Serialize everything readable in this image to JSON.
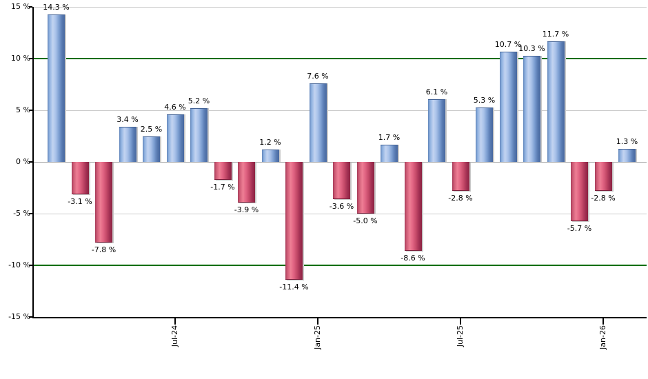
{
  "chart_data": {
    "type": "bar",
    "title": "",
    "values": [
      14.3,
      -3.1,
      -7.8,
      3.4,
      2.5,
      4.6,
      5.2,
      -1.7,
      -3.9,
      1.2,
      -11.4,
      7.6,
      -3.6,
      -5.0,
      1.7,
      -8.6,
      6.1,
      -2.8,
      5.3,
      10.7,
      10.3,
      11.7,
      -5.7,
      -2.8,
      1.3
    ],
    "value_label_suffix": " %",
    "ylim": [
      -15,
      15
    ],
    "y_ticks": [
      {
        "value": 15,
        "label": "15 %"
      },
      {
        "value": 10,
        "label": "10 %"
      },
      {
        "value": 5,
        "label": "5 %"
      },
      {
        "value": 0,
        "label": "0 %"
      },
      {
        "value": -5,
        "label": "-5 %"
      },
      {
        "value": -10,
        "label": "-10 %"
      },
      {
        "value": -15,
        "label": "-15 %"
      }
    ],
    "x_ticks": [
      {
        "index": 5,
        "label": "Jul-24"
      },
      {
        "index": 11,
        "label": "Jan-25"
      },
      {
        "index": 17,
        "label": "Jul-25"
      },
      {
        "index": 23,
        "label": "Jan-26"
      }
    ],
    "gridline_values": [
      15,
      10,
      5,
      0,
      -5
    ],
    "reference_line_values": [
      10,
      -10
    ],
    "legend": null,
    "grid": true,
    "colors": {
      "positive_bar_gradient": [
        "#5f83b9",
        "#8baede",
        "#c3d4f1",
        "#a8c1e9",
        "#7d9fd2",
        "#587ab1",
        "#47689f"
      ],
      "negative_bar_gradient": [
        "#a43b58",
        "#cb5873",
        "#ee7f95",
        "#e06382",
        "#c54a69",
        "#a23053",
        "#8c2342"
      ],
      "positive_bar_border": "#3f5f93",
      "negative_bar_border": "#7c1f3c",
      "reference_line": "#006e00",
      "gridline": "#cbcbcb",
      "zero_line": "#b0b0b0",
      "axis": "#000000",
      "text": "#000000",
      "bar_shadow": "#c9c9c9",
      "background": "#ffffff"
    }
  }
}
